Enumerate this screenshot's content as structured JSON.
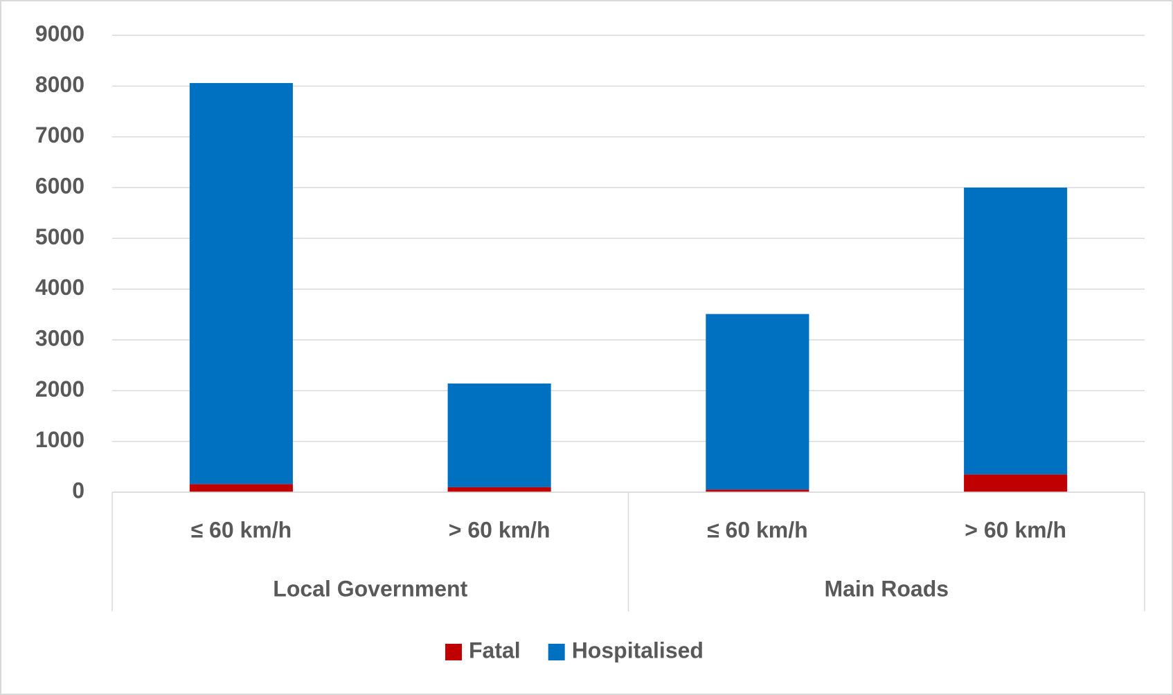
{
  "chart_data": {
    "type": "stacked_bar",
    "groups": [
      {
        "name": "Local Government",
        "categories": [
          "≤ 60 km/h",
          "> 60 km/h"
        ]
      },
      {
        "name": "Main Roads",
        "categories": [
          "≤ 60 km/h",
          "> 60 km/h"
        ]
      }
    ],
    "series": [
      {
        "name": "Fatal",
        "color": "#c00000",
        "values": [
          160,
          100,
          50,
          350
        ]
      },
      {
        "name": "Hospitalised",
        "color": "#0070c0",
        "values": [
          7900,
          2040,
          3460,
          5650
        ]
      }
    ],
    "ylim": [
      0,
      9000
    ],
    "yticks": [
      0,
      1000,
      2000,
      3000,
      4000,
      5000,
      6000,
      7000,
      8000,
      9000
    ],
    "grid": true,
    "legend": "bottom"
  }
}
